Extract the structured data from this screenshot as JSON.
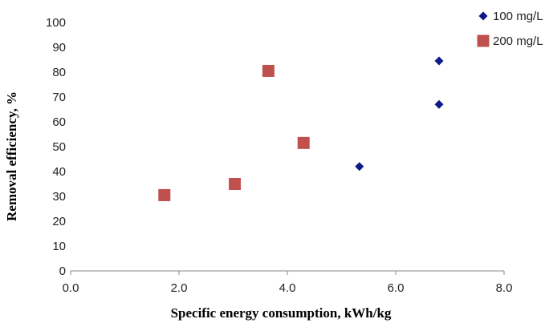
{
  "chart_data": {
    "type": "scatter",
    "xlabel": "Specific energy consumption, kWh/kg",
    "ylabel": "Removal efficiency, %",
    "xlim": [
      0,
      8
    ],
    "ylim": [
      0,
      100
    ],
    "x_ticks": [
      "0.0",
      "2.0",
      "4.0",
      "6.0",
      "8.0"
    ],
    "y_ticks": [
      "0",
      "10",
      "20",
      "30",
      "40",
      "50",
      "60",
      "70",
      "80",
      "90",
      "100"
    ],
    "grid": false,
    "legend_position": "top-right",
    "series": [
      {
        "name": "100 mg/L",
        "marker": "diamond",
        "color": "#0d1a8a",
        "points": [
          {
            "x": 5.33,
            "y": 42
          },
          {
            "x": 6.8,
            "y": 67
          },
          {
            "x": 6.8,
            "y": 84.5
          }
        ]
      },
      {
        "name": "200 mg/L",
        "marker": "square",
        "color": "#c0504d",
        "points": [
          {
            "x": 1.73,
            "y": 30.5
          },
          {
            "x": 3.03,
            "y": 35
          },
          {
            "x": 3.65,
            "y": 80.5
          },
          {
            "x": 4.3,
            "y": 51.5
          }
        ]
      }
    ]
  }
}
